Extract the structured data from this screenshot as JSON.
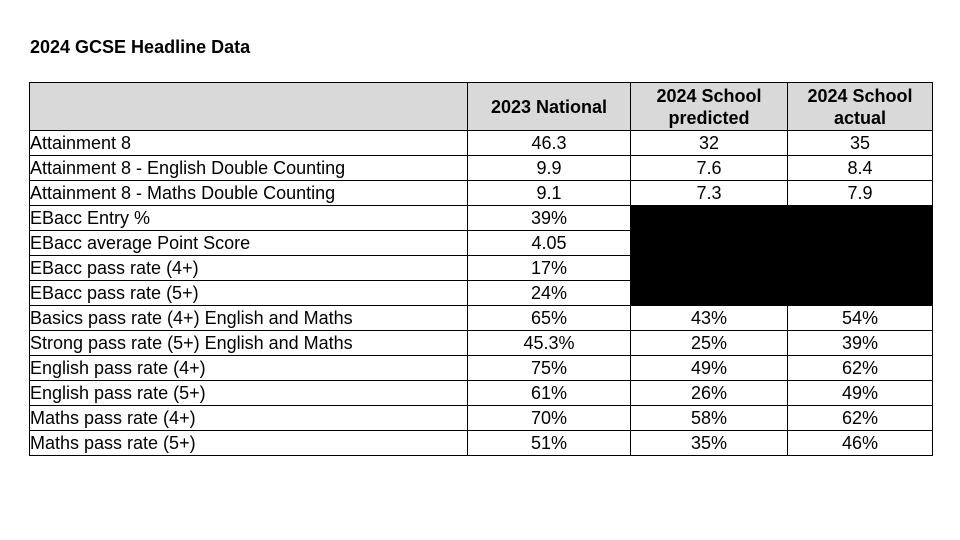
{
  "title": "2024 GCSE Headline Data",
  "table": {
    "columns": [
      "",
      "2023 National",
      "2024 School predicted",
      "2024 School actual"
    ],
    "rows": [
      {
        "label": "Attainment 8",
        "values": [
          "46.3",
          "32",
          "35"
        ]
      },
      {
        "label": "Attainment 8 - English Double Counting",
        "values": [
          "9.9",
          "7.6",
          "8.4"
        ]
      },
      {
        "label": "Attainment 8 - Maths Double Counting",
        "values": [
          "9.1",
          "7.3",
          "7.9"
        ]
      },
      {
        "label": "EBacc Entry %",
        "values": [
          "39%",
          null,
          null
        ]
      },
      {
        "label": "EBacc average Point Score",
        "values": [
          "4.05",
          null,
          null
        ]
      },
      {
        "label": "EBacc pass rate (4+)",
        "values": [
          "17%",
          null,
          null
        ]
      },
      {
        "label": "EBacc pass rate (5+)",
        "values": [
          "24%",
          null,
          null
        ]
      },
      {
        "label": "Basics pass rate (4+) English and Maths",
        "values": [
          "65%",
          "43%",
          "54%"
        ]
      },
      {
        "label": "Strong pass rate (5+) English and Maths",
        "values": [
          "45.3%",
          "25%",
          "39%"
        ]
      },
      {
        "label": "English pass rate (4+)",
        "values": [
          "75%",
          "49%",
          "62%"
        ]
      },
      {
        "label": "English pass rate (5+)",
        "values": [
          "61%",
          "26%",
          "49%"
        ]
      },
      {
        "label": "Maths pass rate (4+)",
        "values": [
          "70%",
          "58%",
          "62%"
        ]
      },
      {
        "label": "Maths pass rate (5+)",
        "values": [
          "51%",
          "35%",
          "46%"
        ]
      }
    ]
  },
  "colors": {
    "header_background": "#d9d9d9",
    "redacted_fill": "#000000",
    "border": "#000000"
  }
}
